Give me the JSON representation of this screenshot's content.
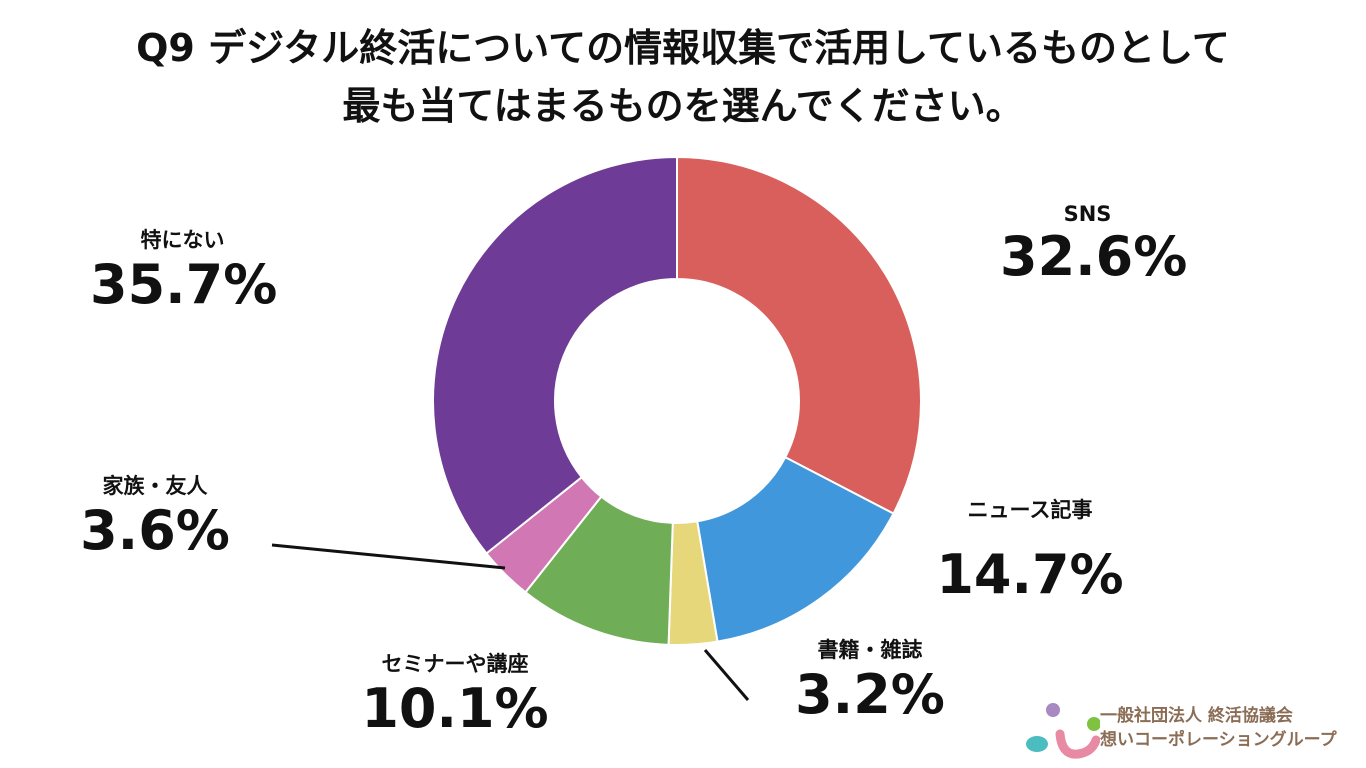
{
  "chart_data": {
    "type": "pie",
    "subtype": "donut",
    "title_line1": "Q9 デジタル終活についての情報収集で活用しているものとして",
    "title_line2": "最も当てはまるものを選んでください。",
    "slices": [
      {
        "label": "SNS",
        "value": 32.6,
        "display": "32.6%",
        "color": "#d95f5c"
      },
      {
        "label": "ニュース記事",
        "value": 14.7,
        "display": "14.7%",
        "color": "#4197dc"
      },
      {
        "label": "書籍・雑誌",
        "value": 3.2,
        "display": "3.2%",
        "color": "#e6d87a"
      },
      {
        "label": "セミナーや講座",
        "value": 10.1,
        "display": "10.1%",
        "color": "#70ad57"
      },
      {
        "label": "家族・友人",
        "value": 3.6,
        "display": "3.6%",
        "color": "#d178b4"
      },
      {
        "label": "特にない",
        "value": 35.7,
        "display": "35.7%",
        "color": "#6e3b96"
      }
    ]
  },
  "logo": {
    "line1": "一般社団法人 終活協議会",
    "line2": "想いコーポレーショングループ"
  }
}
